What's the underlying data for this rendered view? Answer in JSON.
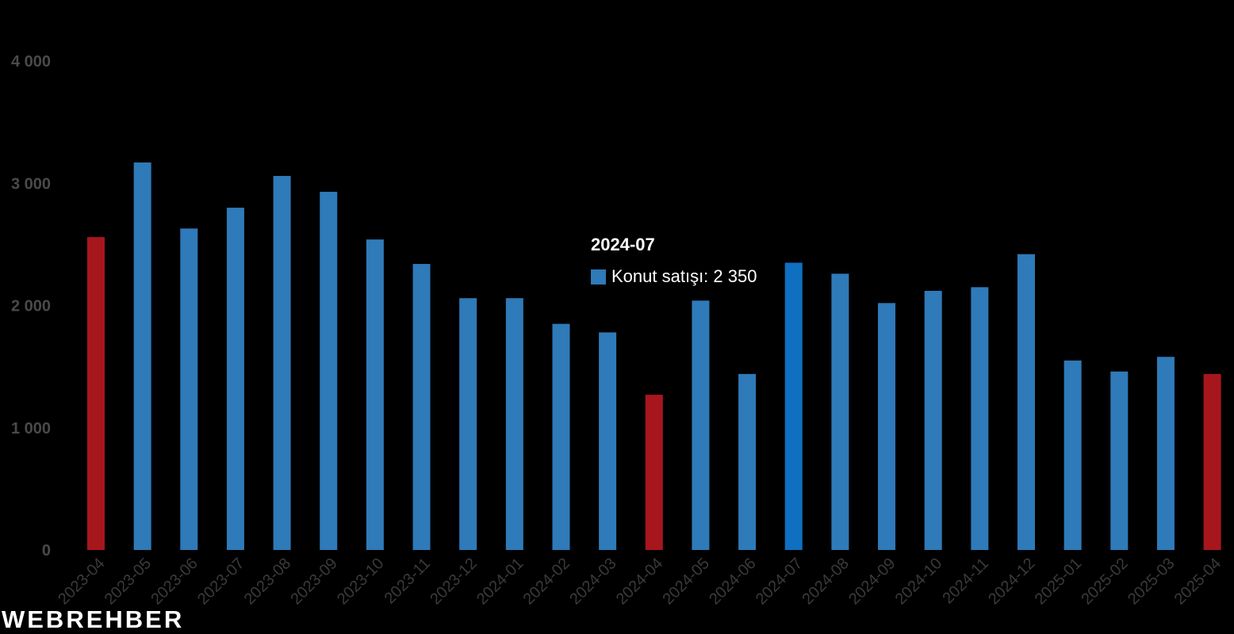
{
  "chart_data": {
    "type": "bar",
    "categories": [
      "2023-04",
      "2023-05",
      "2023-06",
      "2023-07",
      "2023-08",
      "2023-09",
      "2023-10",
      "2023-11",
      "2023-12",
      "2024-01",
      "2024-02",
      "2024-03",
      "2024-04",
      "2024-05",
      "2024-06",
      "2024-07",
      "2024-08",
      "2024-09",
      "2024-10",
      "2024-11",
      "2024-12",
      "2025-01",
      "2025-02",
      "2025-03",
      "2025-04"
    ],
    "values": [
      2560,
      3170,
      2630,
      2800,
      3060,
      2930,
      2540,
      2340,
      2060,
      2060,
      1850,
      1780,
      1270,
      2040,
      1440,
      2350,
      2260,
      2020,
      2120,
      2150,
      2420,
      1550,
      1460,
      1580,
      1440
    ],
    "highlighted": [
      0,
      12,
      24
    ],
    "hovered_index": 15,
    "ylim": [
      0,
      4000
    ],
    "yticks": [
      0,
      1000,
      2000,
      3000,
      4000
    ],
    "ytick_labels": [
      "0",
      "1 000",
      "2 000",
      "3 000",
      "4 000"
    ],
    "grid": false,
    "colors": {
      "bar": "#2f7ab8",
      "highlight": "#a8161d",
      "hover": "#0f6fc0",
      "background": "#000000"
    }
  },
  "tooltip": {
    "title": "2024-07",
    "series_label": "Konut satışı: 2 350",
    "swatch_color": "#2f7ab8"
  },
  "logo": {
    "text": "WEBREHBER"
  }
}
